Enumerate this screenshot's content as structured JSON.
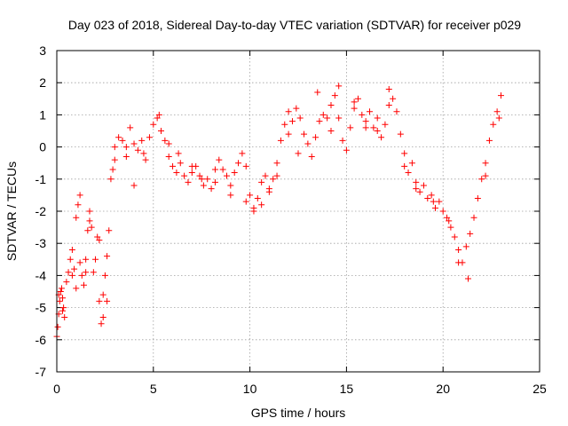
{
  "chart_data": {
    "type": "scatter",
    "title": "Day 023 of 2018, Sidereal Day-to-day VTEC variation (SDTVAR) for receiver p029",
    "xlabel": "GPS time / hours",
    "ylabel": "SDTVAR / TECUs",
    "xlim": [
      0,
      25
    ],
    "ylim": [
      -7,
      3
    ],
    "xticks": [
      0,
      5,
      10,
      15,
      20,
      25
    ],
    "yticks": [
      -7,
      -6,
      -5,
      -4,
      -3,
      -2,
      -1,
      0,
      1,
      2,
      3
    ],
    "grid": true,
    "marker": "+",
    "color": "#ff0000",
    "series": [
      {
        "name": "SDTVAR",
        "x": [
          0.0,
          0.05,
          0.1,
          0.15,
          0.2,
          0.25,
          0.3,
          0.35,
          0.4,
          0.5,
          0.6,
          0.7,
          0.8,
          0.9,
          1.0,
          1.1,
          1.2,
          1.3,
          1.4,
          1.5,
          1.6,
          1.7,
          1.8,
          1.9,
          2.0,
          2.1,
          2.2,
          2.3,
          2.4,
          2.5,
          2.6,
          2.7,
          2.8,
          2.9,
          3.0,
          3.2,
          3.4,
          3.6,
          3.8,
          4.0,
          4.2,
          4.4,
          4.6,
          4.8,
          5.0,
          5.2,
          5.4,
          5.6,
          5.8,
          6.0,
          6.2,
          6.4,
          6.6,
          6.8,
          7.0,
          7.2,
          7.4,
          7.6,
          7.8,
          8.0,
          8.2,
          8.4,
          8.6,
          8.8,
          9.0,
          9.2,
          9.4,
          9.6,
          9.8,
          10.0,
          10.2,
          10.4,
          10.6,
          10.8,
          11.0,
          11.2,
          11.4,
          11.6,
          11.8,
          12.0,
          12.2,
          12.4,
          12.6,
          12.8,
          13.0,
          13.2,
          13.4,
          13.6,
          13.8,
          14.0,
          14.2,
          14.4,
          14.6,
          14.8,
          15.0,
          15.2,
          15.4,
          15.6,
          15.8,
          16.0,
          16.2,
          16.4,
          16.6,
          16.8,
          17.0,
          17.2,
          17.4,
          17.6,
          17.8,
          18.0,
          18.2,
          18.4,
          18.6,
          18.8,
          19.0,
          19.2,
          19.4,
          19.6,
          19.8,
          20.0,
          20.2,
          20.4,
          20.6,
          20.8,
          21.0,
          21.2,
          21.4,
          21.6,
          21.8,
          22.0,
          22.2,
          22.4,
          22.6,
          22.8,
          23.0,
          0.1,
          0.3,
          0.8,
          1.0,
          1.2,
          1.5,
          1.7,
          2.2,
          2.4,
          2.6,
          3.0,
          3.6,
          4.0,
          4.5,
          5.3,
          5.8,
          6.3,
          7.0,
          7.5,
          8.2,
          9.0,
          9.8,
          10.2,
          10.6,
          11.0,
          11.4,
          12.0,
          12.5,
          13.5,
          14.2,
          14.6,
          15.4,
          16.0,
          16.6,
          17.2,
          18.0,
          18.6,
          19.5,
          20.3,
          20.8,
          21.3,
          22.2,
          22.9
        ],
        "y": [
          -5.9,
          -5.6,
          -5.2,
          -4.8,
          -4.5,
          -4.4,
          -4.7,
          -5.0,
          -5.3,
          -4.2,
          -3.9,
          -3.5,
          -3.2,
          -3.8,
          -2.2,
          -1.8,
          -1.5,
          -4.0,
          -4.3,
          -3.5,
          -2.6,
          -2.0,
          -2.5,
          -3.9,
          -3.5,
          -2.8,
          -4.8,
          -5.5,
          -4.6,
          -4.0,
          -3.4,
          -2.6,
          -1.0,
          -0.7,
          0.0,
          0.3,
          0.2,
          -0.3,
          0.6,
          0.1,
          -0.1,
          0.2,
          -0.4,
          0.3,
          0.7,
          0.9,
          0.5,
          0.2,
          -0.3,
          -0.6,
          -0.8,
          -0.5,
          -0.9,
          -1.1,
          -0.8,
          -0.6,
          -0.9,
          -1.2,
          -1.0,
          -1.3,
          -1.1,
          -0.4,
          -0.7,
          -0.9,
          -1.2,
          -0.8,
          -0.5,
          -0.2,
          -0.6,
          -1.5,
          -1.9,
          -1.6,
          -1.1,
          -0.9,
          -1.3,
          -1.0,
          -0.5,
          0.2,
          0.7,
          1.1,
          0.8,
          1.2,
          0.9,
          0.4,
          0.1,
          -0.3,
          0.3,
          0.8,
          1.0,
          0.9,
          0.5,
          1.6,
          0.9,
          0.2,
          -0.1,
          0.6,
          1.2,
          1.5,
          1.0,
          0.8,
          1.1,
          0.6,
          0.9,
          0.3,
          0.7,
          1.3,
          1.5,
          1.1,
          0.4,
          -0.2,
          -0.8,
          -0.5,
          -1.1,
          -1.4,
          -1.2,
          -1.6,
          -1.5,
          -1.9,
          -1.7,
          -2.0,
          -2.2,
          -2.5,
          -2.8,
          -3.2,
          -3.6,
          -3.1,
          -2.7,
          -2.2,
          -1.6,
          -1.0,
          -0.5,
          0.2,
          0.7,
          1.1,
          1.6,
          -4.6,
          -5.1,
          -4.0,
          -4.4,
          -3.6,
          -3.9,
          -2.3,
          -2.9,
          -5.3,
          -4.8,
          -0.4,
          0.0,
          -1.2,
          -0.2,
          1.0,
          0.1,
          -0.2,
          -0.6,
          -1.0,
          -0.7,
          -1.5,
          -1.7,
          -2.0,
          -1.8,
          -1.4,
          -0.9,
          0.4,
          -0.2,
          1.7,
          1.3,
          1.9,
          1.4,
          0.6,
          0.5,
          1.8,
          -0.6,
          -1.3,
          -1.7,
          -2.3,
          -3.6,
          -4.1,
          -0.9,
          0.9
        ]
      }
    ]
  }
}
